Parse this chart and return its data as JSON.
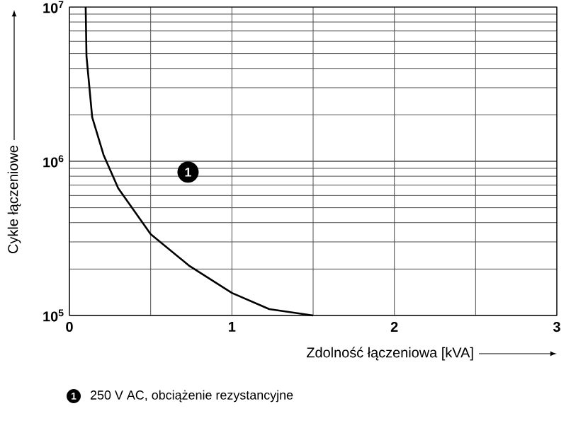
{
  "chart_data": {
    "type": "line",
    "xlabel": "Zdolność łączeniowa [kVA]",
    "ylabel": "Cykle łączeniowe",
    "x": [
      0.1,
      0.105,
      0.14,
      0.21,
      0.3,
      0.5,
      0.74,
      1.0,
      1.23,
      1.5
    ],
    "values": [
      10000000,
      4800000,
      1930000,
      1100000,
      670000,
      337000,
      209000,
      140000,
      110000,
      100000
    ],
    "color": "#000000",
    "log": "y",
    "grid": true,
    "marker": "none",
    "line_style": "solid",
    "xlim": [
      0,
      3
    ],
    "xticks": [
      0,
      {
        "value": 0.5,
        "label": null
      },
      1,
      {
        "value": 1.5,
        "label": null
      },
      2,
      {
        "value": 2.5,
        "label": null
      },
      3
    ],
    "ylim": [
      100000,
      10000000
    ],
    "yticks": [
      {
        "value": 100000,
        "label": "10$^{5}$"
      },
      {
        "value": 1000000,
        "label": "10$^{6}$"
      },
      {
        "value": 10000000,
        "label": "10$^{7}$"
      }
    ],
    "annotations": [
      {
        "text": "1",
        "x": 0.73,
        "y": 850000
      },
      "250 V AC, obciążenie rezystancyjne"
    ]
  }
}
